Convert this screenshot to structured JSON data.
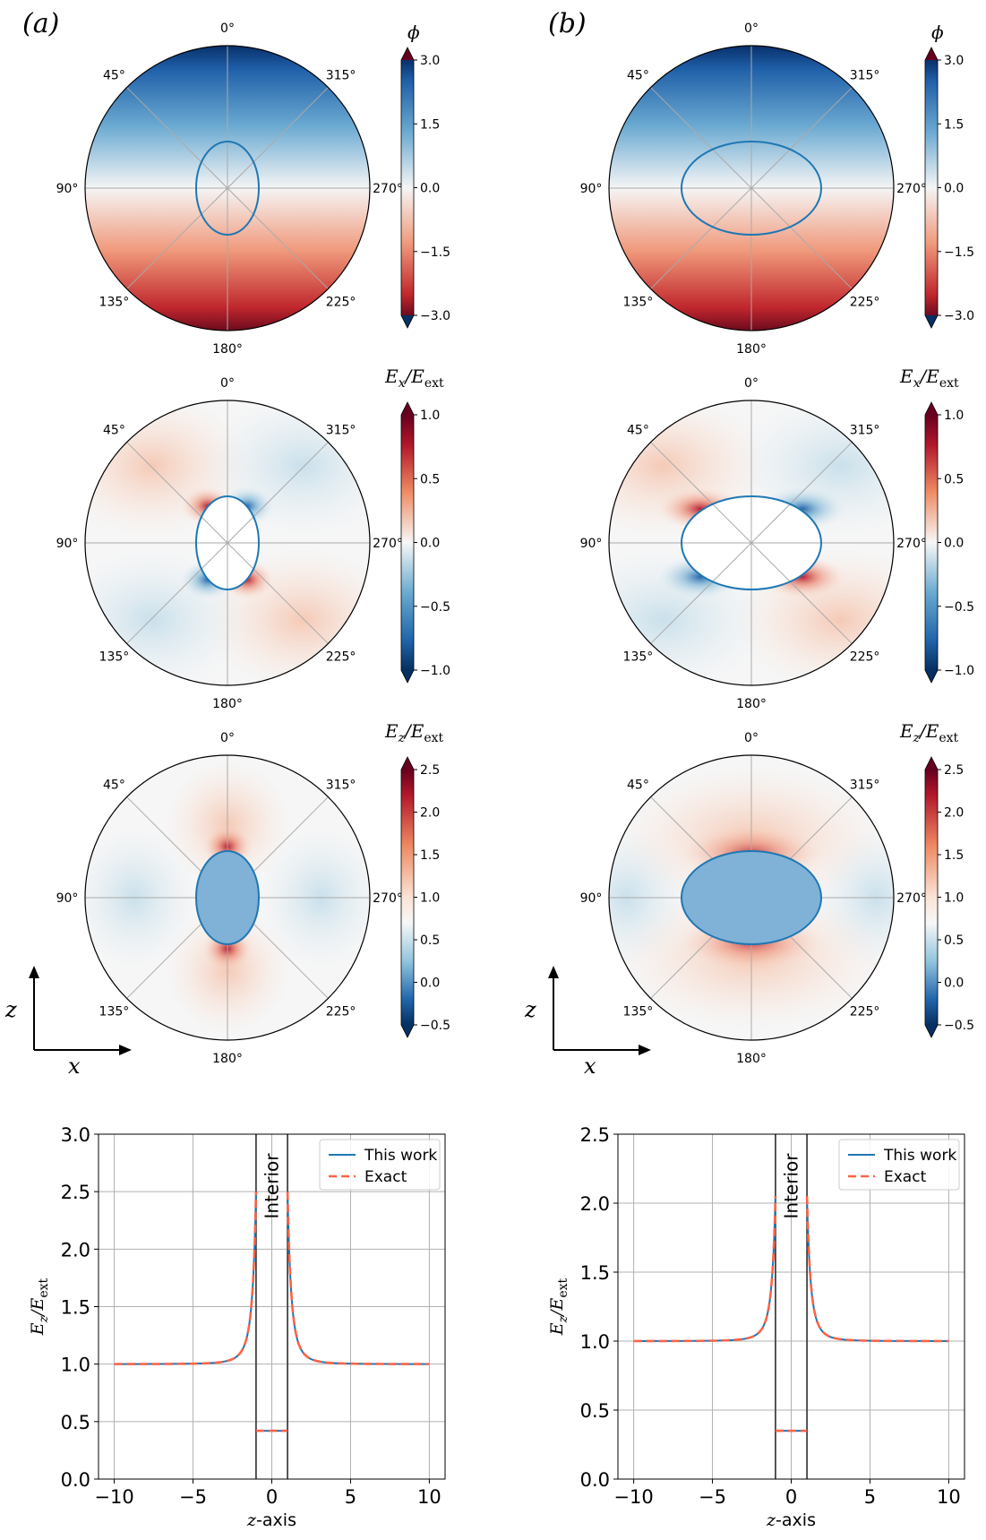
{
  "figure": {
    "panel_labels": [
      "(a)",
      "(b)"
    ],
    "polar_angle_labels": [
      "0°",
      "45°",
      "90°",
      "135°",
      "180°",
      "225°",
      "270°",
      "315°"
    ],
    "colorbars": [
      {
        "symbol": "ϕ",
        "sub": "",
        "ticks": [
          "3.0",
          "1.5",
          "0.0",
          "−1.5",
          "−3.0"
        ]
      },
      {
        "symbol": "E",
        "sub": "x",
        "den": "/E",
        "densub": "ext",
        "ticks": [
          "1.0",
          "0.5",
          "0.0",
          "−0.5",
          "−1.0"
        ]
      },
      {
        "symbol": "E",
        "sub": "z",
        "den": "/E",
        "densub": "ext",
        "ticks": [
          "2.5",
          "2.0",
          "1.5",
          "1.0",
          "0.5",
          "0.0",
          "−0.5"
        ]
      }
    ],
    "axis_letters": {
      "z": "z",
      "x": "x"
    },
    "colors": {
      "blue": "#1f77b4",
      "red": "#b2182b",
      "dashed": "#ff6347",
      "grid": "#b0b0b0",
      "interior_fill": "#7fb2d6"
    }
  },
  "chart_data": [
    {
      "type": "line",
      "panel": "a",
      "title": "",
      "xlabel": "z-axis",
      "ylabel": "E_z/E_ext",
      "xlim": [
        -11,
        11
      ],
      "ylim": [
        0.0,
        3.0
      ],
      "xticks": [
        "−10",
        "−5",
        "0",
        "5",
        "10"
      ],
      "yticks": [
        "0.0",
        "0.5",
        "1.0",
        "1.5",
        "2.0",
        "2.5",
        "3.0"
      ],
      "interior_label": "Interior",
      "interior_bounds": [
        -1,
        1
      ],
      "interior_value": 0.42,
      "peak_value": 2.5,
      "series": [
        {
          "name": "This work",
          "style": "solid",
          "color": "#1f77b4"
        },
        {
          "name": "Exact",
          "style": "dashed",
          "color": "#ff6347"
        }
      ],
      "legend_placement": "top-right"
    },
    {
      "type": "line",
      "panel": "b",
      "title": "",
      "xlabel": "z-axis",
      "ylabel": "E_z/E_ext",
      "xlim": [
        -11,
        11
      ],
      "ylim": [
        0.0,
        2.5
      ],
      "xticks": [
        "−10",
        "−5",
        "0",
        "5",
        "10"
      ],
      "yticks": [
        "0.0",
        "0.5",
        "1.0",
        "1.5",
        "2.0",
        "2.5"
      ],
      "interior_label": "Interior",
      "interior_bounds": [
        -1,
        1
      ],
      "interior_value": 0.35,
      "peak_value": 2.05,
      "series": [
        {
          "name": "This work",
          "style": "solid",
          "color": "#1f77b4"
        },
        {
          "name": "Exact",
          "style": "dashed",
          "color": "#ff6347"
        }
      ],
      "legend_placement": "top-right"
    }
  ]
}
